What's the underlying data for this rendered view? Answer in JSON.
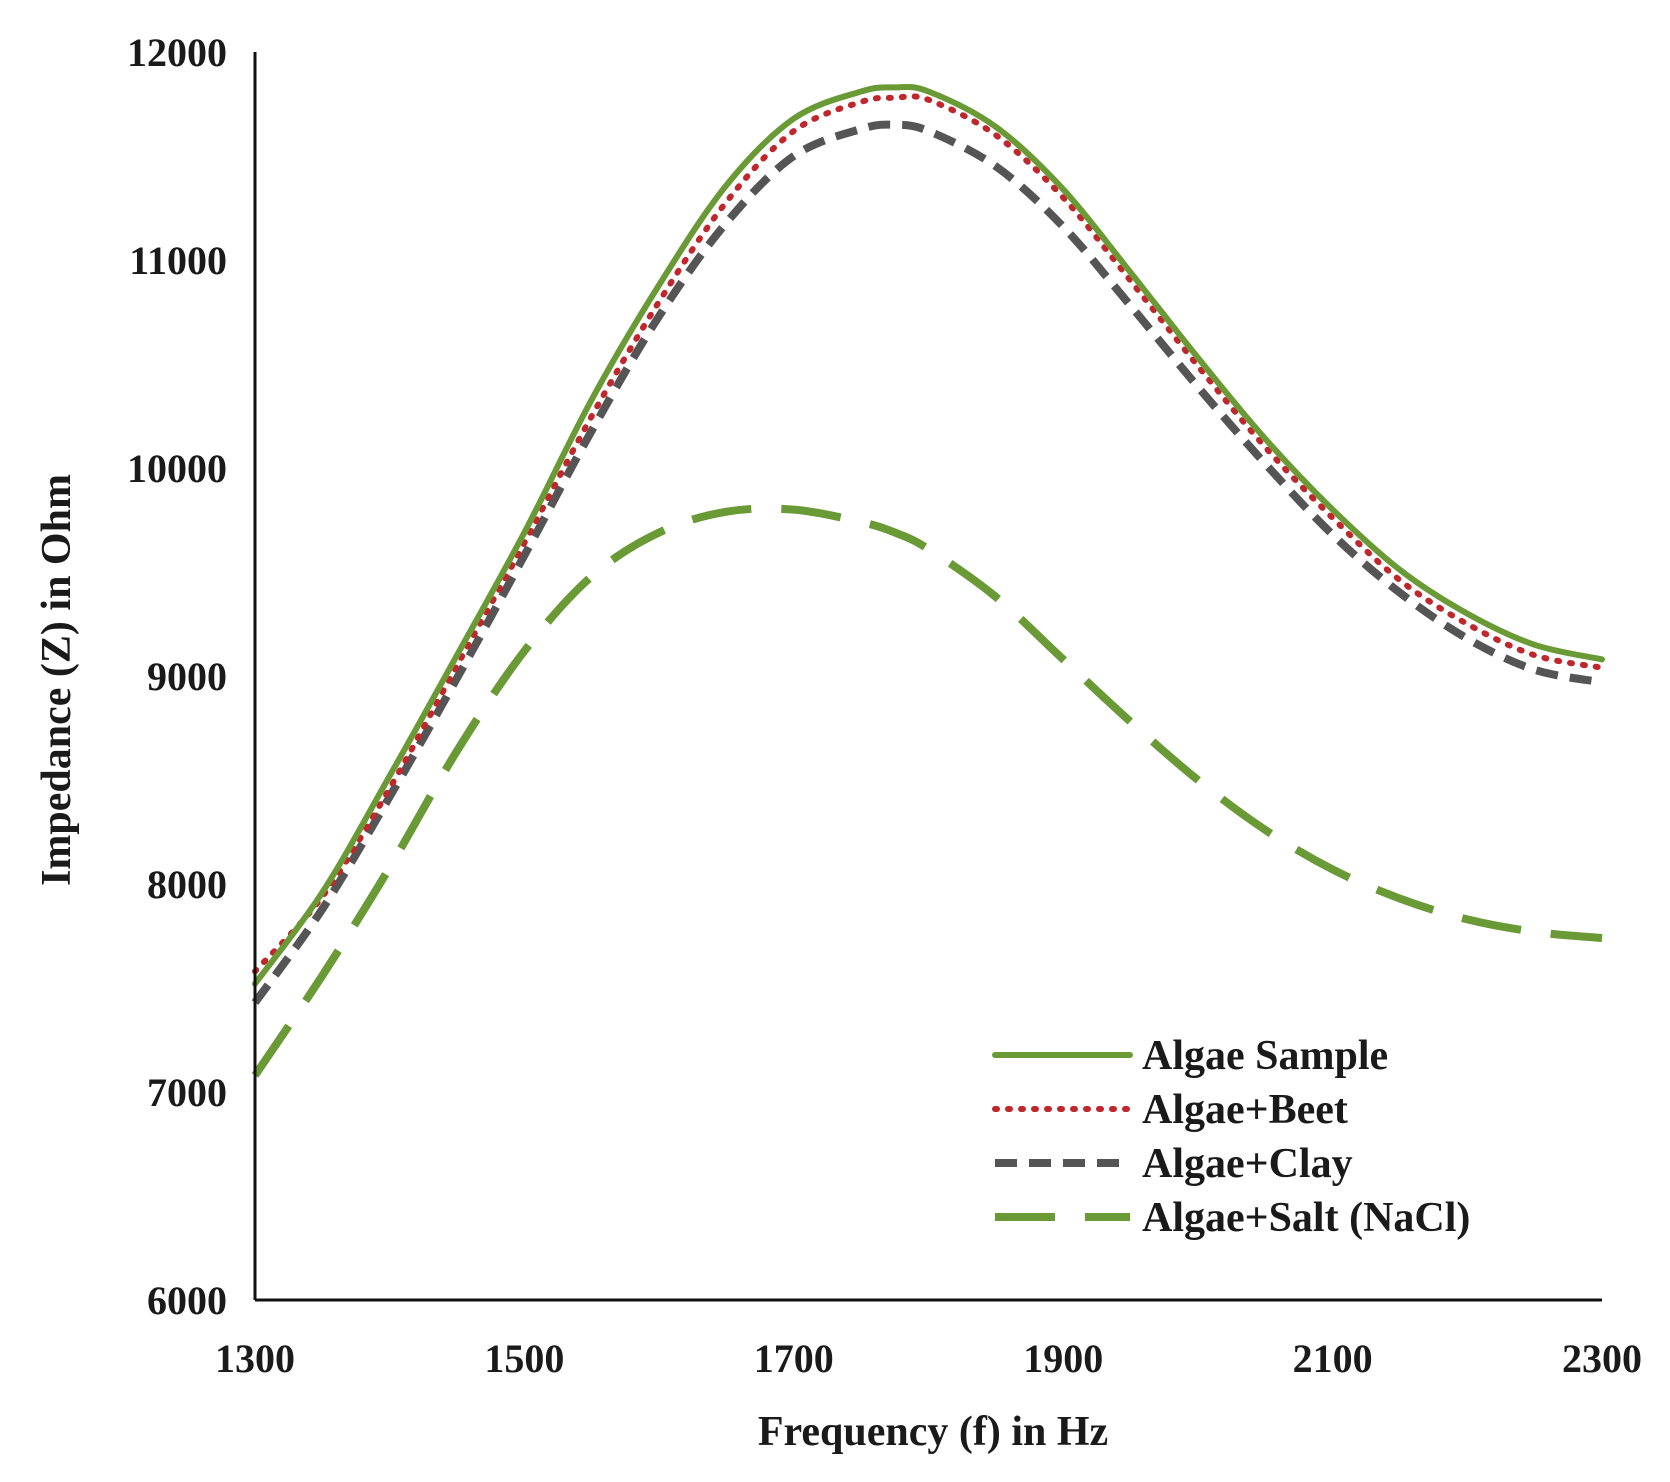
{
  "chart_data": {
    "type": "line",
    "title": "",
    "xlabel": "Frequency (f) in Hz",
    "ylabel": "Impedance (Z) in Ohm",
    "xlim": [
      1300,
      2300
    ],
    "ylim": [
      6000,
      12000
    ],
    "xticks": [
      1300,
      1500,
      1700,
      1900,
      2100,
      2300
    ],
    "yticks": [
      6000,
      7000,
      8000,
      9000,
      10000,
      11000,
      12000
    ],
    "grid": false,
    "legend_position": "bottom-right",
    "x": [
      1300,
      1350,
      1400,
      1450,
      1500,
      1550,
      1600,
      1650,
      1700,
      1750,
      1775,
      1800,
      1850,
      1900,
      1950,
      2000,
      2050,
      2100,
      2150,
      2200,
      2250,
      2300
    ],
    "series": [
      {
        "name": "Algae Sample",
        "color": "#6a9a35",
        "style": "solid",
        "values": [
          7520,
          7960,
          8520,
          9100,
          9690,
          10330,
          10880,
          11360,
          11680,
          11810,
          11830,
          11810,
          11640,
          11340,
          10940,
          10530,
          10140,
          9800,
          9510,
          9300,
          9150,
          9080
        ]
      },
      {
        "name": "Algae+Beet",
        "color": "#c0272d",
        "style": "dotted",
        "values": [
          7580,
          7940,
          8460,
          9050,
          9640,
          10250,
          10800,
          11280,
          11620,
          11760,
          11780,
          11770,
          11600,
          11300,
          10900,
          10490,
          10100,
          9760,
          9460,
          9250,
          9100,
          9040
        ]
      },
      {
        "name": "Algae+Clay",
        "color": "#555555",
        "style": "dashed",
        "values": [
          7430,
          7880,
          8420,
          8990,
          9580,
          10180,
          10730,
          11180,
          11500,
          11630,
          11650,
          11620,
          11450,
          11160,
          10780,
          10390,
          10020,
          9680,
          9400,
          9180,
          9030,
          8970
        ]
      },
      {
        "name": "Algae+Salt (NaCl)",
        "color": "#6a9a35",
        "style": "long-dashed",
        "values": [
          7080,
          7560,
          8080,
          8640,
          9120,
          9480,
          9690,
          9790,
          9800,
          9740,
          9690,
          9610,
          9380,
          9080,
          8780,
          8500,
          8260,
          8070,
          7930,
          7830,
          7770,
          7740
        ]
      }
    ]
  }
}
